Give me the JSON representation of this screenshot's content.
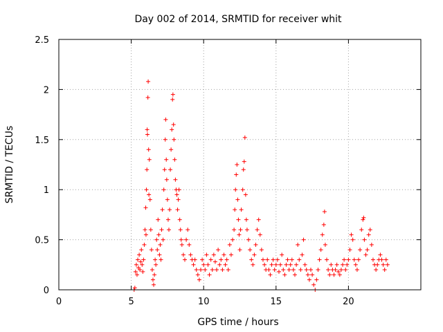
{
  "chart_data": {
    "type": "scatter",
    "title": "Day 002 of 2014, SRMTID for receiver whit",
    "xlabel": "GPS time / hours",
    "ylabel": "SRMTID / TECUs",
    "xlim": [
      0,
      25
    ],
    "ylim": [
      0,
      2.5
    ],
    "x_ticks": [
      0,
      5,
      10,
      15,
      20
    ],
    "x_tick_labels": [
      "0",
      "5",
      "10",
      "15",
      "20"
    ],
    "y_ticks": [
      0,
      0.5,
      1,
      1.5,
      2,
      2.5
    ],
    "y_tick_labels": [
      "0",
      "0.5",
      "1",
      "1.5",
      "2",
      "2.5"
    ],
    "grid": true,
    "marker": "plus",
    "series_color": "#ff0000",
    "series": [
      {
        "name": "SRMTID",
        "points": [
          [
            5.2,
            0.0
          ],
          [
            5.25,
            0.02
          ],
          [
            5.3,
            0.18
          ],
          [
            5.35,
            0.25
          ],
          [
            5.4,
            0.15
          ],
          [
            5.45,
            0.3
          ],
          [
            5.5,
            0.22
          ],
          [
            5.55,
            0.35
          ],
          [
            5.6,
            0.2
          ],
          [
            5.65,
            0.28
          ],
          [
            5.7,
            0.4
          ],
          [
            5.75,
            0.25
          ],
          [
            5.8,
            0.18
          ],
          [
            5.85,
            0.3
          ],
          [
            5.9,
            0.45
          ],
          [
            5.95,
            0.6
          ],
          [
            6.0,
            0.82
          ],
          [
            6.02,
            0.55
          ],
          [
            6.05,
            1.0
          ],
          [
            6.08,
            1.2
          ],
          [
            6.1,
            1.6
          ],
          [
            6.12,
            1.55
          ],
          [
            6.15,
            1.92
          ],
          [
            6.17,
            2.08
          ],
          [
            6.2,
            1.4
          ],
          [
            6.22,
            0.95
          ],
          [
            6.25,
            1.3
          ],
          [
            6.3,
            0.9
          ],
          [
            6.35,
            0.6
          ],
          [
            6.4,
            0.4
          ],
          [
            6.45,
            0.2
          ],
          [
            6.5,
            0.1
          ],
          [
            6.55,
            0.05
          ],
          [
            6.6,
            0.15
          ],
          [
            6.65,
            0.3
          ],
          [
            6.7,
            0.25
          ],
          [
            6.75,
            0.5
          ],
          [
            6.8,
            0.4
          ],
          [
            6.85,
            0.7
          ],
          [
            6.9,
            0.55
          ],
          [
            6.95,
            0.35
          ],
          [
            7.0,
            0.45
          ],
          [
            7.05,
            0.3
          ],
          [
            7.1,
            0.6
          ],
          [
            7.15,
            0.8
          ],
          [
            7.2,
            0.5
          ],
          [
            7.25,
            1.0
          ],
          [
            7.3,
            1.2
          ],
          [
            7.35,
            1.5
          ],
          [
            7.38,
            1.7
          ],
          [
            7.42,
            1.3
          ],
          [
            7.45,
            1.1
          ],
          [
            7.5,
            0.9
          ],
          [
            7.55,
            0.7
          ],
          [
            7.6,
            0.6
          ],
          [
            7.65,
            0.8
          ],
          [
            7.7,
            1.2
          ],
          [
            7.75,
            1.4
          ],
          [
            7.8,
            1.6
          ],
          [
            7.85,
            1.9
          ],
          [
            7.88,
            1.95
          ],
          [
            7.92,
            1.65
          ],
          [
            7.95,
            1.5
          ],
          [
            8.0,
            1.3
          ],
          [
            8.05,
            1.1
          ],
          [
            8.1,
            1.0
          ],
          [
            8.15,
            0.95
          ],
          [
            8.2,
            0.8
          ],
          [
            8.25,
            0.9
          ],
          [
            8.3,
            1.0
          ],
          [
            8.35,
            0.7
          ],
          [
            8.4,
            0.6
          ],
          [
            8.45,
            0.5
          ],
          [
            8.5,
            0.45
          ],
          [
            8.6,
            0.35
          ],
          [
            8.7,
            0.3
          ],
          [
            8.8,
            0.5
          ],
          [
            8.9,
            0.6
          ],
          [
            9.0,
            0.45
          ],
          [
            9.1,
            0.35
          ],
          [
            9.2,
            0.3
          ],
          [
            9.3,
            0.25
          ],
          [
            9.4,
            0.3
          ],
          [
            9.5,
            0.2
          ],
          [
            9.6,
            0.15
          ],
          [
            9.7,
            0.1
          ],
          [
            9.8,
            0.2
          ],
          [
            9.9,
            0.3
          ],
          [
            10.0,
            0.25
          ],
          [
            10.1,
            0.2
          ],
          [
            10.2,
            0.35
          ],
          [
            10.3,
            0.25
          ],
          [
            10.4,
            0.15
          ],
          [
            10.5,
            0.3
          ],
          [
            10.6,
            0.2
          ],
          [
            10.7,
            0.35
          ],
          [
            10.8,
            0.28
          ],
          [
            10.9,
            0.2
          ],
          [
            11.0,
            0.4
          ],
          [
            11.1,
            0.25
          ],
          [
            11.2,
            0.3
          ],
          [
            11.3,
            0.2
          ],
          [
            11.4,
            0.35
          ],
          [
            11.5,
            0.25
          ],
          [
            11.6,
            0.3
          ],
          [
            11.7,
            0.2
          ],
          [
            11.8,
            0.45
          ],
          [
            11.9,
            0.35
          ],
          [
            12.0,
            0.5
          ],
          [
            12.1,
            0.6
          ],
          [
            12.15,
            0.8
          ],
          [
            12.2,
            1.0
          ],
          [
            12.25,
            1.15
          ],
          [
            12.3,
            1.25
          ],
          [
            12.35,
            0.9
          ],
          [
            12.4,
            0.7
          ],
          [
            12.45,
            0.55
          ],
          [
            12.5,
            0.4
          ],
          [
            12.55,
            0.6
          ],
          [
            12.6,
            0.8
          ],
          [
            12.7,
            1.0
          ],
          [
            12.75,
            1.2
          ],
          [
            12.8,
            1.28
          ],
          [
            12.85,
            1.52
          ],
          [
            12.9,
            0.95
          ],
          [
            12.95,
            0.7
          ],
          [
            13.0,
            0.6
          ],
          [
            13.1,
            0.5
          ],
          [
            13.2,
            0.4
          ],
          [
            13.3,
            0.3
          ],
          [
            13.4,
            0.25
          ],
          [
            13.5,
            0.35
          ],
          [
            13.6,
            0.45
          ],
          [
            13.7,
            0.6
          ],
          [
            13.8,
            0.7
          ],
          [
            13.9,
            0.55
          ],
          [
            14.0,
            0.4
          ],
          [
            14.1,
            0.3
          ],
          [
            14.2,
            0.25
          ],
          [
            14.3,
            0.2
          ],
          [
            14.4,
            0.3
          ],
          [
            14.5,
            0.2
          ],
          [
            14.6,
            0.15
          ],
          [
            14.7,
            0.25
          ],
          [
            14.8,
            0.3
          ],
          [
            14.9,
            0.2
          ],
          [
            15.0,
            0.25
          ],
          [
            15.1,
            0.3
          ],
          [
            15.2,
            0.18
          ],
          [
            15.3,
            0.25
          ],
          [
            15.4,
            0.35
          ],
          [
            15.5,
            0.2
          ],
          [
            15.6,
            0.15
          ],
          [
            15.7,
            0.25
          ],
          [
            15.8,
            0.3
          ],
          [
            15.9,
            0.2
          ],
          [
            16.0,
            0.25
          ],
          [
            16.1,
            0.3
          ],
          [
            16.2,
            0.2
          ],
          [
            16.3,
            0.15
          ],
          [
            16.4,
            0.25
          ],
          [
            16.5,
            0.45
          ],
          [
            16.6,
            0.3
          ],
          [
            16.7,
            0.2
          ],
          [
            16.8,
            0.35
          ],
          [
            16.9,
            0.5
          ],
          [
            17.0,
            0.25
          ],
          [
            17.1,
            0.2
          ],
          [
            17.2,
            0.15
          ],
          [
            17.3,
            0.1
          ],
          [
            17.4,
            0.2
          ],
          [
            17.5,
            0.15
          ],
          [
            17.6,
            0.05
          ],
          [
            17.7,
            0.0
          ],
          [
            17.8,
            0.1
          ],
          [
            17.9,
            0.2
          ],
          [
            18.0,
            0.3
          ],
          [
            18.1,
            0.4
          ],
          [
            18.2,
            0.55
          ],
          [
            18.3,
            0.65
          ],
          [
            18.35,
            0.78
          ],
          [
            18.4,
            0.45
          ],
          [
            18.5,
            0.3
          ],
          [
            18.6,
            0.2
          ],
          [
            18.7,
            0.15
          ],
          [
            18.8,
            0.25
          ],
          [
            18.9,
            0.2
          ],
          [
            19.0,
            0.15
          ],
          [
            19.1,
            0.2
          ],
          [
            19.2,
            0.25
          ],
          [
            19.3,
            0.18
          ],
          [
            19.4,
            0.15
          ],
          [
            19.5,
            0.2
          ],
          [
            19.6,
            0.25
          ],
          [
            19.7,
            0.3
          ],
          [
            19.8,
            0.2
          ],
          [
            19.9,
            0.25
          ],
          [
            20.0,
            0.3
          ],
          [
            20.1,
            0.4
          ],
          [
            20.2,
            0.55
          ],
          [
            20.3,
            0.5
          ],
          [
            20.4,
            0.3
          ],
          [
            20.5,
            0.25
          ],
          [
            20.6,
            0.2
          ],
          [
            20.7,
            0.3
          ],
          [
            20.8,
            0.4
          ],
          [
            20.9,
            0.6
          ],
          [
            21.0,
            0.7
          ],
          [
            21.05,
            0.72
          ],
          [
            21.1,
            0.5
          ],
          [
            21.2,
            0.35
          ],
          [
            21.3,
            0.4
          ],
          [
            21.4,
            0.55
          ],
          [
            21.5,
            0.6
          ],
          [
            21.6,
            0.45
          ],
          [
            21.7,
            0.3
          ],
          [
            21.8,
            0.25
          ],
          [
            21.9,
            0.2
          ],
          [
            22.0,
            0.25
          ],
          [
            22.1,
            0.3
          ],
          [
            22.2,
            0.35
          ],
          [
            22.3,
            0.3
          ],
          [
            22.4,
            0.25
          ],
          [
            22.5,
            0.2
          ],
          [
            22.6,
            0.3
          ],
          [
            22.7,
            0.25
          ]
        ]
      }
    ]
  }
}
